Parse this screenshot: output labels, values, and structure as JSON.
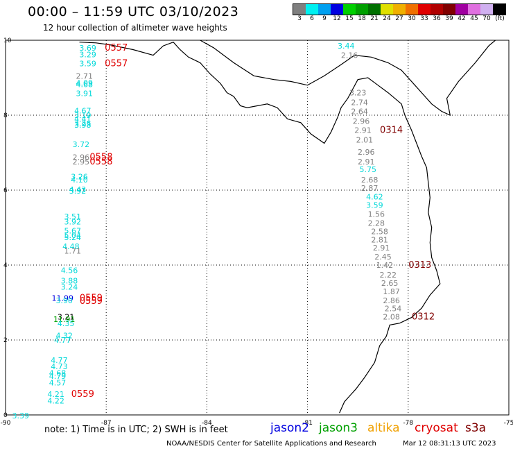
{
  "header": {
    "title": "00:00 – 11:59 UTC 03/10/2023",
    "subtitle": "12 hour collection of altimeter wave heights"
  },
  "legend": {
    "unit": "(ft)",
    "levels": [
      {
        "label": "3",
        "color": "#7f7f7f"
      },
      {
        "label": "6",
        "color": "#00f0f0"
      },
      {
        "label": "9",
        "color": "#00a0f0"
      },
      {
        "label": "12",
        "color": "#0000e0"
      },
      {
        "label": "15",
        "color": "#00d000"
      },
      {
        "label": "18",
        "color": "#00a000"
      },
      {
        "label": "21",
        "color": "#007000"
      },
      {
        "label": "24",
        "color": "#e0e000"
      },
      {
        "label": "27",
        "color": "#f0b000"
      },
      {
        "label": "30",
        "color": "#f07000"
      },
      {
        "label": "33",
        "color": "#e00000"
      },
      {
        "label": "36",
        "color": "#b00000"
      },
      {
        "label": "39",
        "color": "#800000"
      },
      {
        "label": "42",
        "color": "#a000a0"
      },
      {
        "label": "45",
        "color": "#e070e0"
      },
      {
        "label": "70",
        "color": "#d0b0f0"
      },
      {
        "label": "",
        "color": "#000000"
      }
    ]
  },
  "axes": {
    "x_ticks": [
      "-90",
      "-87",
      "-84",
      "-81",
      "-78",
      "-75"
    ],
    "y_ticks": [
      "0",
      "2",
      "4",
      "6",
      "8",
      "10"
    ]
  },
  "readings": [
    {
      "text": "3.69",
      "lon": -87.55,
      "lat": 9.8,
      "color": "#00d8d8"
    },
    {
      "text": "0557",
      "lon": -86.7,
      "lat": 9.8,
      "color": "#e00000"
    },
    {
      "text": "3.29",
      "lon": -87.55,
      "lat": 9.62,
      "color": "#00d8d8"
    },
    {
      "text": "3.59",
      "lon": -87.55,
      "lat": 9.38,
      "color": "#00d8d8"
    },
    {
      "text": "0557",
      "lon": -86.7,
      "lat": 9.38,
      "color": "#e00000"
    },
    {
      "text": "2.71",
      "lon": -87.65,
      "lat": 9.05,
      "color": "#808080"
    },
    {
      "text": "4.09",
      "lon": -87.65,
      "lat": 8.86,
      "color": "#00d8d8"
    },
    {
      "text": "4.68",
      "lon": -87.65,
      "lat": 8.82,
      "color": "#00d8d8"
    },
    {
      "text": "3.91",
      "lon": -87.65,
      "lat": 8.58,
      "color": "#00d8d8"
    },
    {
      "text": "4.67",
      "lon": -87.7,
      "lat": 8.12,
      "color": "#00d8d8"
    },
    {
      "text": "3.19",
      "lon": -87.7,
      "lat": 8.0,
      "color": "#00d8d8"
    },
    {
      "text": "4.41",
      "lon": -87.7,
      "lat": 7.9,
      "color": "#00d8d8"
    },
    {
      "text": "3.25",
      "lon": -87.7,
      "lat": 7.78,
      "color": "#00d8d8"
    },
    {
      "text": "3.98",
      "lon": -87.7,
      "lat": 7.74,
      "color": "#00d8d8"
    },
    {
      "text": "3.72",
      "lon": -87.75,
      "lat": 7.22,
      "color": "#00d8d8"
    },
    {
      "text": "2.96",
      "lon": -87.75,
      "lat": 6.88,
      "color": "#808080"
    },
    {
      "text": "0558",
      "lon": -87.15,
      "lat": 6.88,
      "color": "#e00000"
    },
    {
      "text": "2.95",
      "lon": -87.75,
      "lat": 6.76,
      "color": "#808080"
    },
    {
      "text": "0558",
      "lon": -87.15,
      "lat": 6.76,
      "color": "#e00000"
    },
    {
      "text": "3.26",
      "lon": -87.8,
      "lat": 6.36,
      "color": "#00d8d8"
    },
    {
      "text": "4.10",
      "lon": -87.8,
      "lat": 6.28,
      "color": "#00d8d8"
    },
    {
      "text": "4.43",
      "lon": -87.85,
      "lat": 6.02,
      "color": "#00d8d8"
    },
    {
      "text": "3.92",
      "lon": -87.85,
      "lat": 5.98,
      "color": "#00d8d8"
    },
    {
      "text": "3.51",
      "lon": -88.0,
      "lat": 5.3,
      "color": "#00d8d8"
    },
    {
      "text": "3.92",
      "lon": -88.0,
      "lat": 5.16,
      "color": "#00d8d8"
    },
    {
      "text": "5.67",
      "lon": -88.0,
      "lat": 4.92,
      "color": "#00d8d8"
    },
    {
      "text": "5.04",
      "lon": -88.0,
      "lat": 4.8,
      "color": "#00d8d8"
    },
    {
      "text": "5.24",
      "lon": -88.0,
      "lat": 4.74,
      "color": "#00d8d8"
    },
    {
      "text": "4.48",
      "lon": -88.05,
      "lat": 4.5,
      "color": "#00d8d8"
    },
    {
      "text": "1.71",
      "lon": -88.0,
      "lat": 4.38,
      "color": "#808080"
    },
    {
      "text": "4.56",
      "lon": -88.1,
      "lat": 3.86,
      "color": "#00d8d8"
    },
    {
      "text": "3.88",
      "lon": -88.1,
      "lat": 3.58,
      "color": "#00d8d8"
    },
    {
      "text": "3.24",
      "lon": -88.1,
      "lat": 3.42,
      "color": "#00d8d8"
    },
    {
      "text": "11.99",
      "lon": -88.3,
      "lat": 3.12,
      "color": "#0000e0"
    },
    {
      "text": "0559",
      "lon": -87.45,
      "lat": 3.12,
      "color": "#e00000"
    },
    {
      "text": "3.90",
      "lon": -88.25,
      "lat": 3.06,
      "color": "#00d8d8"
    },
    {
      "text": "0559",
      "lon": -87.45,
      "lat": 3.04,
      "color": "#e00000"
    },
    {
      "text": "3.21",
      "lon": -88.2,
      "lat": 2.62,
      "color": "#000000"
    },
    {
      "text": "11.91",
      "lon": -88.25,
      "lat": 2.56,
      "color": "#00a000"
    },
    {
      "text": "4.35",
      "lon": -88.2,
      "lat": 2.44,
      "color": "#00d8d8"
    },
    {
      "text": "4.32",
      "lon": -88.25,
      "lat": 2.12,
      "color": "#00d8d8"
    },
    {
      "text": "4.77",
      "lon": -88.3,
      "lat": 2.0,
      "color": "#00d8d8"
    },
    {
      "text": "4.77",
      "lon": -88.4,
      "lat": 1.46,
      "color": "#00d8d8"
    },
    {
      "text": "4.73",
      "lon": -88.4,
      "lat": 1.3,
      "color": "#00d8d8"
    },
    {
      "text": "4.68",
      "lon": -88.45,
      "lat": 1.12,
      "color": "#00d8d8"
    },
    {
      "text": "4.79",
      "lon": -88.45,
      "lat": 1.04,
      "color": "#00d8d8"
    },
    {
      "text": "4.57",
      "lon": -88.45,
      "lat": 0.86,
      "color": "#00d8d8"
    },
    {
      "text": "4.21",
      "lon": -88.5,
      "lat": 0.56,
      "color": "#00d8d8"
    },
    {
      "text": "0559",
      "lon": -87.7,
      "lat": 0.56,
      "color": "#e00000"
    },
    {
      "text": "4.22",
      "lon": -88.5,
      "lat": 0.38,
      "color": "#00d8d8"
    },
    {
      "text": "3.39",
      "lon": -89.55,
      "lat": -0.02,
      "color": "#00d8d8"
    },
    {
      "text": "3.44",
      "lon": -79.85,
      "lat": 9.85,
      "color": "#00d8d8"
    },
    {
      "text": "2.16",
      "lon": -79.75,
      "lat": 9.6,
      "color": "#808080"
    },
    {
      "text": "3.23",
      "lon": -79.5,
      "lat": 8.6,
      "color": "#808080"
    },
    {
      "text": "2.74",
      "lon": -79.45,
      "lat": 8.34,
      "color": "#808080"
    },
    {
      "text": "2.64",
      "lon": -79.45,
      "lat": 8.1,
      "color": "#808080"
    },
    {
      "text": "2.96",
      "lon": -79.4,
      "lat": 7.84,
      "color": "#808080"
    },
    {
      "text": "2.91",
      "lon": -79.35,
      "lat": 7.6,
      "color": "#808080"
    },
    {
      "text": "0314",
      "lon": -78.5,
      "lat": 7.6,
      "color": "#800000"
    },
    {
      "text": "2.01",
      "lon": -79.3,
      "lat": 7.34,
      "color": "#808080"
    },
    {
      "text": "2.96",
      "lon": -79.25,
      "lat": 7.02,
      "color": "#808080"
    },
    {
      "text": "2.91",
      "lon": -79.25,
      "lat": 6.76,
      "color": "#808080"
    },
    {
      "text": "5.75",
      "lon": -79.2,
      "lat": 6.56,
      "color": "#00d8d8"
    },
    {
      "text": "2.68",
      "lon": -79.15,
      "lat": 6.28,
      "color": "#808080"
    },
    {
      "text": "2.87",
      "lon": -79.15,
      "lat": 6.06,
      "color": "#808080"
    },
    {
      "text": "4.62",
      "lon": -79.0,
      "lat": 5.82,
      "color": "#00d8d8"
    },
    {
      "text": "3.59",
      "lon": -79.0,
      "lat": 5.6,
      "color": "#00d8d8"
    },
    {
      "text": "1.56",
      "lon": -78.95,
      "lat": 5.36,
      "color": "#808080"
    },
    {
      "text": "2.28",
      "lon": -78.95,
      "lat": 5.12,
      "color": "#808080"
    },
    {
      "text": "2.58",
      "lon": -78.85,
      "lat": 4.9,
      "color": "#808080"
    },
    {
      "text": "2.81",
      "lon": -78.85,
      "lat": 4.68,
      "color": "#808080"
    },
    {
      "text": "2.91",
      "lon": -78.8,
      "lat": 4.46,
      "color": "#808080"
    },
    {
      "text": "2.45",
      "lon": -78.75,
      "lat": 4.22,
      "color": "#808080"
    },
    {
      "text": "1.42",
      "lon": -78.7,
      "lat": 4.0,
      "color": "#808080"
    },
    {
      "text": "0313",
      "lon": -77.65,
      "lat": 4.0,
      "color": "#800000"
    },
    {
      "text": "2.22",
      "lon": -78.6,
      "lat": 3.74,
      "color": "#808080"
    },
    {
      "text": "2.65",
      "lon": -78.55,
      "lat": 3.52,
      "color": "#808080"
    },
    {
      "text": "1.87",
      "lon": -78.5,
      "lat": 3.3,
      "color": "#808080"
    },
    {
      "text": "2.86",
      "lon": -78.5,
      "lat": 3.06,
      "color": "#808080"
    },
    {
      "text": "2.54",
      "lon": -78.45,
      "lat": 2.84,
      "color": "#808080"
    },
    {
      "text": "2.08",
      "lon": -78.5,
      "lat": 2.62,
      "color": "#808080"
    },
    {
      "text": "0312",
      "lon": -77.55,
      "lat": 2.62,
      "color": "#800000"
    }
  ],
  "footer": {
    "note": "note:  1) Time is in UTC; 2) SWH is in feet",
    "satellites": [
      {
        "name": "jason2",
        "color": "#0000e0"
      },
      {
        "name": "jason3",
        "color": "#00a000"
      },
      {
        "name": "altika",
        "color": "#f0a000"
      },
      {
        "name": "cryosat",
        "color": "#e00000"
      },
      {
        "name": "s3a",
        "color": "#800000"
      }
    ],
    "credit": "NOAA/NESDIS Center for Satellite Applications and Research",
    "datestamp": "Mar 12 08:31:13 UTC 2023"
  }
}
